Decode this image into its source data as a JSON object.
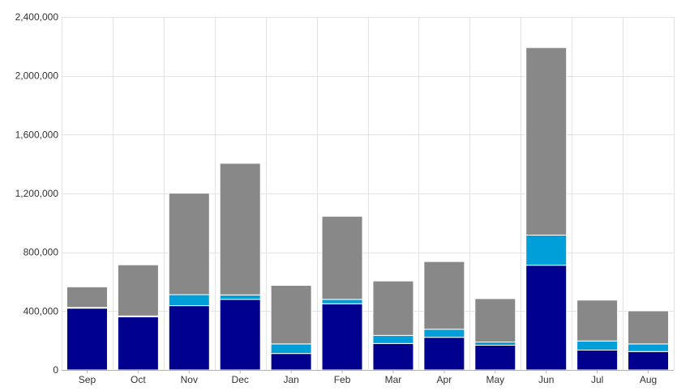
{
  "chart_data": {
    "type": "bar",
    "stacked": true,
    "categories": [
      "Sep",
      "Oct",
      "Nov",
      "Dec",
      "Jan",
      "Feb",
      "Mar",
      "Apr",
      "May",
      "Jun",
      "Jul",
      "Aug"
    ],
    "series": [
      {
        "color": "#00008f",
        "values": [
          420000,
          362000,
          437000,
          480000,
          112000,
          450000,
          180000,
          222000,
          168000,
          712000,
          135000,
          125000
        ]
      },
      {
        "color": "#009fda",
        "values": [
          5000,
          5000,
          75000,
          30000,
          65000,
          30000,
          55000,
          55000,
          22000,
          205000,
          62000,
          52000
        ]
      },
      {
        "color": "#888888",
        "values": [
          140000,
          348000,
          690000,
          895000,
          398000,
          565000,
          370000,
          460000,
          295000,
          1275000,
          278000,
          225000
        ]
      }
    ],
    "title": "",
    "xlabel": "",
    "ylabel": "",
    "ylim": [
      0,
      2400000
    ],
    "yticks": [
      0,
      400000,
      800000,
      1200000,
      1600000,
      2000000,
      2400000
    ],
    "ytick_labels": [
      "0",
      "400,000",
      "800,000",
      "1,200,000",
      "1,600,000",
      "2,000,000",
      "2,400,000"
    ],
    "grid": true,
    "legend": "none"
  }
}
